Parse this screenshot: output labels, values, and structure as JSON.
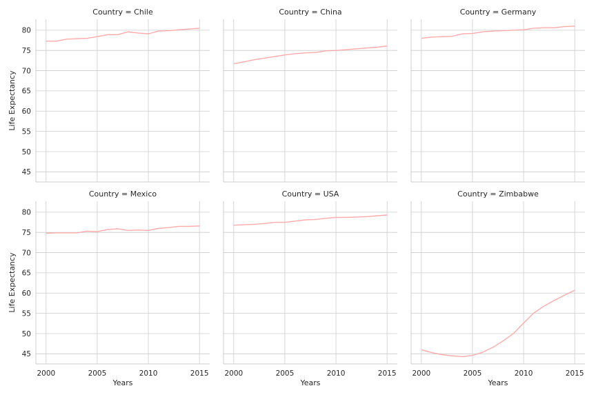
{
  "chart_data": {
    "type": "line",
    "layout": "facet-grid",
    "columns": 3,
    "rows": 2,
    "xlabel": "Years",
    "ylabel": "Life Expectancy",
    "xlim": [
      1999,
      2016
    ],
    "ylim": [
      42.5,
      82.7
    ],
    "xticks": [
      2000,
      2005,
      2010,
      2015
    ],
    "yticks": [
      45,
      50,
      55,
      60,
      65,
      70,
      75,
      80
    ],
    "grid": true,
    "line_color": "#ffaaaa",
    "x": [
      2000,
      2001,
      2002,
      2003,
      2004,
      2005,
      2006,
      2007,
      2008,
      2009,
      2010,
      2011,
      2012,
      2013,
      2014,
      2015
    ],
    "panels": [
      {
        "title": "Country = Chile",
        "values": [
          77.3,
          77.3,
          77.8,
          77.9,
          78.0,
          78.4,
          78.9,
          78.9,
          79.6,
          79.3,
          79.1,
          79.8,
          79.9,
          80.1,
          80.3,
          80.5
        ]
      },
      {
        "title": "Country = China",
        "values": [
          71.7,
          72.2,
          72.7,
          73.1,
          73.5,
          73.9,
          74.2,
          74.4,
          74.5,
          74.9,
          75.0,
          75.2,
          75.4,
          75.6,
          75.8,
          76.1
        ]
      },
      {
        "title": "Country = Germany",
        "values": [
          78.0,
          78.3,
          78.4,
          78.5,
          79.1,
          79.2,
          79.6,
          79.8,
          79.9,
          80.0,
          80.1,
          80.5,
          80.6,
          80.6,
          80.9,
          81.0
        ]
      },
      {
        "title": "Country = Mexico",
        "values": [
          74.8,
          74.9,
          74.9,
          74.9,
          75.3,
          75.2,
          75.7,
          75.9,
          75.5,
          75.6,
          75.5,
          76.0,
          76.2,
          76.5,
          76.5,
          76.6
        ]
      },
      {
        "title": "Country = USA",
        "values": [
          76.8,
          76.9,
          77.0,
          77.2,
          77.5,
          77.5,
          77.8,
          78.1,
          78.2,
          78.5,
          78.7,
          78.7,
          78.8,
          78.9,
          79.1,
          79.3
        ]
      },
      {
        "title": "Country = Zimbabwe",
        "values": [
          46.0,
          45.3,
          44.8,
          44.5,
          44.3,
          44.6,
          45.4,
          46.6,
          48.2,
          50.0,
          52.6,
          55.1,
          56.8,
          58.2,
          59.5,
          60.7
        ]
      }
    ]
  }
}
